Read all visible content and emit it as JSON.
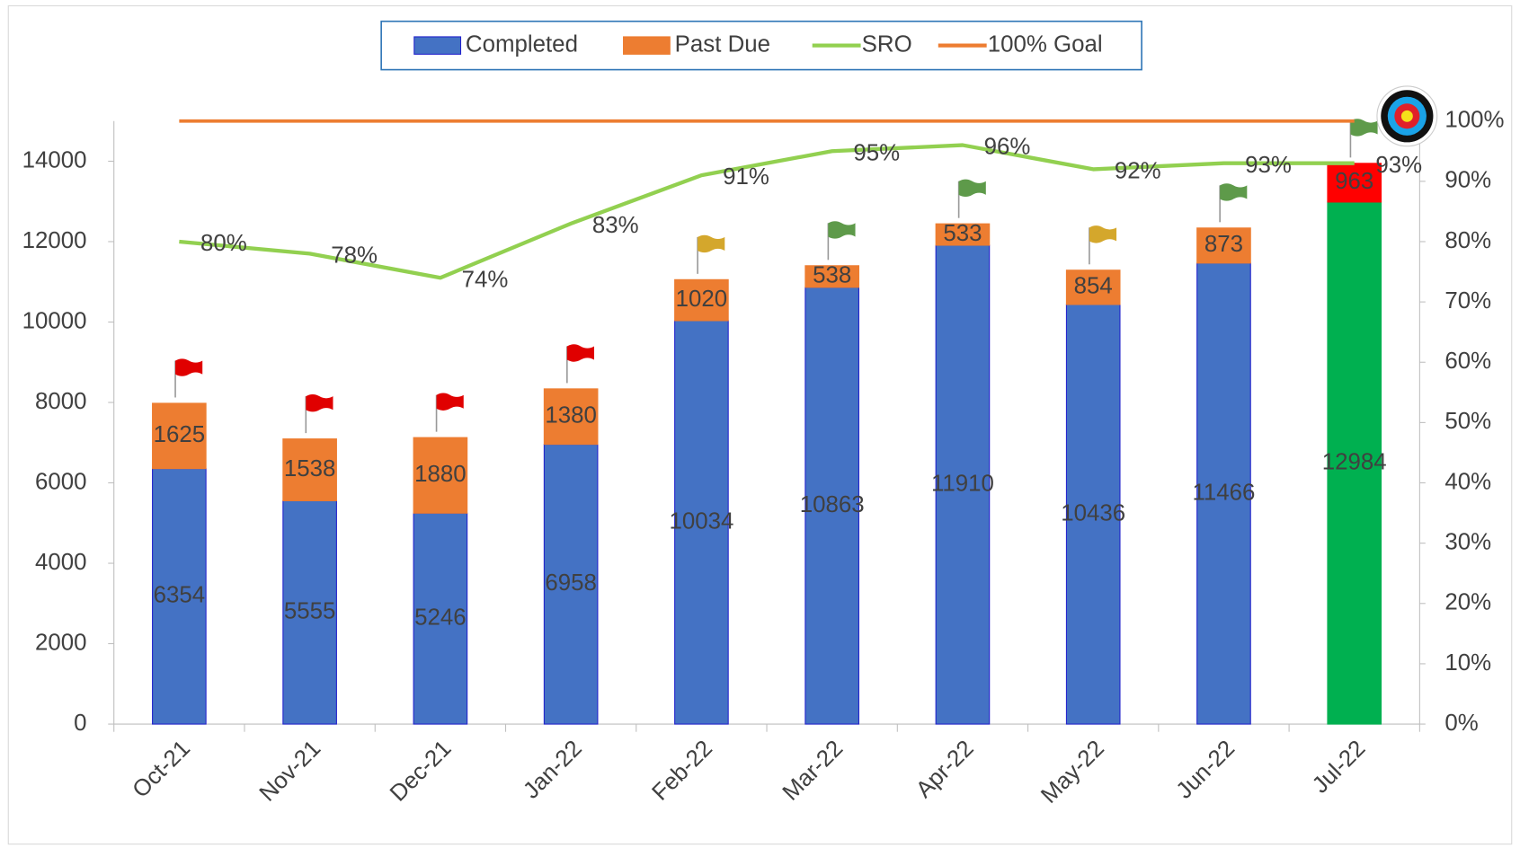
{
  "chart_data": {
    "type": "stacked_bar_line",
    "categories": [
      "Oct-21",
      "Nov-21",
      "Dec-21",
      "Jan-22",
      "Feb-22",
      "Mar-22",
      "Apr-22",
      "May-22",
      "Jun-22",
      "Jul-22"
    ],
    "series": [
      {
        "name": "Completed",
        "type": "bar",
        "color": "#4472c4",
        "colors": [
          "#4472c4",
          "#4472c4",
          "#4472c4",
          "#4472c4",
          "#4472c4",
          "#4472c4",
          "#4472c4",
          "#4472c4",
          "#4472c4",
          "#00b050"
        ],
        "values": [
          6354,
          5555,
          5246,
          6958,
          10034,
          10863,
          11910,
          10436,
          11466,
          12984
        ]
      },
      {
        "name": "Past Due",
        "type": "bar",
        "color": "#ed7d31",
        "colors": [
          "#ed7d31",
          "#ed7d31",
          "#ed7d31",
          "#ed7d31",
          "#ed7d31",
          "#ed7d31",
          "#ed7d31",
          "#ed7d31",
          "#ed7d31",
          "#ff0000"
        ],
        "values": [
          1625,
          1538,
          1880,
          1380,
          1020,
          538,
          533,
          854,
          873,
          963
        ]
      },
      {
        "name": "SRO",
        "type": "line",
        "axis": "y2",
        "color": "#92d050",
        "values": [
          80,
          78,
          74,
          83,
          91,
          95,
          96,
          92,
          93,
          93
        ],
        "value_labels": [
          "80%",
          "78%",
          "74%",
          "83%",
          "91%",
          "95%",
          "96%",
          "92%",
          "93%",
          "93%"
        ]
      },
      {
        "name": "100% Goal",
        "type": "line",
        "axis": "y2",
        "color": "#ed7d31",
        "values": [
          100,
          100,
          100,
          100,
          100,
          100,
          100,
          100,
          100,
          100
        ]
      }
    ],
    "flag_colors": [
      "#e00000",
      "#e00000",
      "#e00000",
      "#e00000",
      "#d4a72c",
      "#5e9a4a",
      "#5e9a4a",
      "#d4a72c",
      "#5e9a4a",
      "#5e9a4a"
    ],
    "ylim": [
      0,
      15000
    ],
    "yticks": [
      0,
      2000,
      4000,
      6000,
      8000,
      10000,
      12000,
      14000
    ],
    "y2lim": [
      0,
      100
    ],
    "y2ticks": [
      {
        "value": 0,
        "label": "0%"
      },
      {
        "value": 10,
        "label": "10%"
      },
      {
        "value": 20,
        "label": "20%"
      },
      {
        "value": 30,
        "label": "30%"
      },
      {
        "value": 40,
        "label": "40%"
      },
      {
        "value": 50,
        "label": "50%"
      },
      {
        "value": 60,
        "label": "60%"
      },
      {
        "value": 70,
        "label": "70%"
      },
      {
        "value": 80,
        "label": "80%"
      },
      {
        "value": 90,
        "label": "90%"
      },
      {
        "value": 100,
        "label": "100%"
      }
    ],
    "legend": "top"
  }
}
